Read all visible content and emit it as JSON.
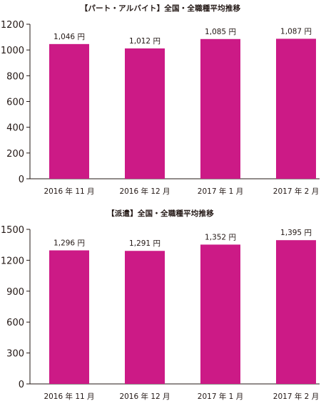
{
  "colors": {
    "bar": "#cc1a86",
    "axis": "#231815"
  },
  "chart_data": [
    {
      "type": "bar",
      "title": "【パート・アルバイト】全国・全職種平均推移",
      "categories": [
        "2016 年 11 月",
        "2016 年 12 月",
        "2017 年 1 月",
        "2017 年 2 月"
      ],
      "values": [
        1046,
        1012,
        1085,
        1087
      ],
      "data_labels": [
        "1,046 円",
        "1,012 円",
        "1,085 円",
        "1,087 円"
      ],
      "ylim": [
        0,
        1200
      ],
      "yticks": [
        0,
        200,
        400,
        600,
        800,
        1000,
        1200
      ],
      "grid": false
    },
    {
      "type": "bar",
      "title": "【派遣】全国・全職種平均推移",
      "categories": [
        "2016 年 11 月",
        "2016 年 12 月",
        "2017 年 1 月",
        "2017 年 2 月"
      ],
      "values": [
        1296,
        1291,
        1352,
        1395
      ],
      "data_labels": [
        "1,296 円",
        "1,291 円",
        "1,352 円",
        "1,395 円"
      ],
      "ylim": [
        0,
        1500
      ],
      "yticks": [
        0,
        300,
        600,
        900,
        1200,
        1500
      ],
      "grid": false
    }
  ]
}
